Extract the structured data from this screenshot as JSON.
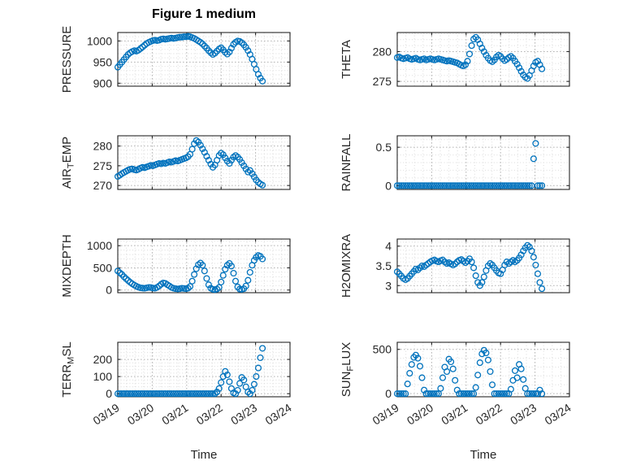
{
  "colors": {
    "marker": "#0072BD",
    "axis": "#262626",
    "text": "#262626",
    "grid_major": "#b3b3b3",
    "grid_minor": "#dbdbdb",
    "background": "#ffffff"
  },
  "chart_data": {
    "type": "scatter",
    "title": "Figure 1 medium",
    "xlabel": "Time",
    "marker": "o",
    "grid": "on",
    "minor_grid": "on",
    "xlim": [
      0,
      5
    ],
    "xticks": [
      0,
      1,
      2,
      3,
      4,
      5
    ],
    "x_tick_labels": [
      "03/19",
      "03/20",
      "03/21",
      "03/22",
      "03/23",
      "03/24"
    ],
    "x_units": "days since 03/19",
    "x": [
      0,
      0.06,
      0.12,
      0.18,
      0.24,
      0.3,
      0.36,
      0.42,
      0.48,
      0.54,
      0.6,
      0.66,
      0.72,
      0.78,
      0.84,
      0.9,
      0.96,
      1.02,
      1.08,
      1.14,
      1.2,
      1.26,
      1.32,
      1.38,
      1.44,
      1.5,
      1.56,
      1.62,
      1.68,
      1.74,
      1.8,
      1.86,
      1.92,
      1.98,
      2.04,
      2.1,
      2.16,
      2.22,
      2.28,
      2.34,
      2.4,
      2.46,
      2.52,
      2.58,
      2.64,
      2.7,
      2.76,
      2.82,
      2.88,
      2.94,
      3,
      3.06,
      3.12,
      3.18,
      3.24,
      3.3,
      3.36,
      3.42,
      3.48,
      3.54,
      3.6,
      3.66,
      3.72,
      3.78,
      3.84,
      3.9,
      3.96,
      4.02,
      4.08,
      4.14,
      4.2
    ],
    "charts": [
      {
        "id": "pressure",
        "ylabel": "PRESSURE",
        "ylabel_parts": [
          [
            "PRESSURE",
            false
          ]
        ],
        "yticks": [
          900,
          950,
          1000
        ],
        "ylim": [
          893,
          1020
        ],
        "values": [
          938,
          944,
          950,
          956,
          962,
          968,
          972,
          975,
          977,
          976,
          978,
          982,
          986,
          990,
          994,
          997,
          999,
          1001,
          1002,
          1001,
          1002,
          1004,
          1005,
          1004,
          1005,
          1006,
          1007,
          1006,
          1007,
          1008,
          1009,
          1009,
          1010,
          1010,
          1011,
          1010,
          1008,
          1006,
          1003,
          1000,
          997,
          993,
          988,
          983,
          977,
          972,
          968,
          971,
          976,
          981,
          984,
          979,
          973,
          969,
          974,
          983,
          992,
          997,
          1000,
          999,
          996,
          991,
          985,
          977,
          968,
          957,
          945,
          933,
          921,
          912,
          905
        ]
      },
      {
        "id": "theta",
        "ylabel": "THETA",
        "ylabel_parts": [
          [
            "THETA",
            false
          ]
        ],
        "yticks": [
          275,
          280
        ],
        "ylim": [
          274.2,
          283.2
        ],
        "values": [
          279,
          279.1,
          278.9,
          278.8,
          278.9,
          279,
          278.8,
          278.7,
          278.8,
          278.9,
          278.7,
          278.6,
          278.7,
          278.8,
          278.6,
          278.7,
          278.8,
          278.7,
          278.6,
          278.7,
          278.8,
          278.7,
          278.6,
          278.5,
          278.4,
          278.5,
          278.4,
          278.3,
          278.2,
          278.1,
          277.9,
          277.7,
          277.6,
          277.8,
          278.4,
          279.6,
          281,
          282.1,
          282.4,
          282,
          281.3,
          280.6,
          280,
          279.4,
          278.9,
          278.5,
          278.3,
          278.6,
          279.1,
          279.4,
          279.2,
          278.8,
          278.5,
          278.7,
          279,
          279.2,
          278.9,
          278.4,
          277.9,
          277.3,
          276.7,
          276.1,
          275.7,
          275.5,
          276,
          276.8,
          277.6,
          278.2,
          278.4,
          277.8,
          277.1
        ]
      },
      {
        "id": "air_temp",
        "ylabel": "AIR_TEMP",
        "ylabel_parts": [
          [
            "AIR",
            false
          ],
          [
            "T",
            true
          ],
          [
            "EMP",
            false
          ]
        ],
        "yticks": [
          270,
          275,
          280
        ],
        "ylim": [
          269,
          282.6
        ],
        "values": [
          272.3,
          272.6,
          273,
          273.3,
          273.6,
          273.9,
          274.1,
          274.2,
          274,
          273.9,
          274.1,
          274.4,
          274.6,
          274.5,
          274.7,
          274.9,
          275.1,
          275,
          275.2,
          275.4,
          275.6,
          275.5,
          275.7,
          275.6,
          275.8,
          276,
          275.9,
          276.1,
          276.3,
          276.2,
          276.4,
          276.6,
          276.8,
          277,
          277.3,
          277.9,
          279.2,
          280.6,
          281.4,
          281,
          280.2,
          279.3,
          278.4,
          277.4,
          276.4,
          275.4,
          274.6,
          275.2,
          276.4,
          277.6,
          278.2,
          277.8,
          277,
          276.2,
          275.6,
          276.4,
          277.2,
          277.6,
          277.2,
          276.6,
          275.8,
          275,
          274.2,
          273.4,
          273.8,
          273,
          272.2,
          271.4,
          270.8,
          270.4,
          270.1
        ]
      },
      {
        "id": "rainfall",
        "ylabel": "RAINFALL",
        "ylabel_parts": [
          [
            "RAINFALL",
            false
          ]
        ],
        "yticks": [
          0,
          0.5
        ],
        "ylim": [
          -0.05,
          0.65
        ],
        "values": [
          0,
          0,
          0,
          0,
          0,
          0,
          0,
          0,
          0,
          0,
          0,
          0,
          0,
          0,
          0,
          0,
          0,
          0,
          0,
          0,
          0,
          0,
          0,
          0,
          0,
          0,
          0,
          0,
          0,
          0,
          0,
          0,
          0,
          0,
          0,
          0,
          0,
          0,
          0,
          0,
          0,
          0,
          0,
          0,
          0,
          0,
          0,
          0,
          0,
          0,
          0,
          0,
          0,
          0,
          0,
          0,
          0,
          0,
          0,
          0,
          0,
          0,
          0,
          0,
          0,
          0,
          0.35,
          0.55,
          0,
          0,
          0
        ]
      },
      {
        "id": "mixdepth",
        "ylabel": "MIXDEPTH",
        "ylabel_parts": [
          [
            "MIXDEPTH",
            false
          ]
        ],
        "yticks": [
          0,
          500,
          1000
        ],
        "ylim": [
          -60,
          1150
        ],
        "values": [
          430,
          390,
          350,
          300,
          255,
          215,
          175,
          140,
          110,
          85,
          65,
          50,
          45,
          40,
          50,
          60,
          55,
          45,
          40,
          60,
          90,
          130,
          160,
          150,
          120,
          90,
          60,
          40,
          30,
          25,
          30,
          40,
          35,
          30,
          40,
          80,
          200,
          350,
          480,
          570,
          610,
          560,
          430,
          260,
          120,
          40,
          15,
          10,
          20,
          60,
          180,
          330,
          470,
          560,
          600,
          540,
          380,
          200,
          70,
          20,
          15,
          30,
          90,
          220,
          400,
          560,
          670,
          740,
          780,
          760,
          700
        ]
      },
      {
        "id": "h2omixra",
        "ylabel": "H2OMIXRA",
        "ylabel_parts": [
          [
            "H2OMIXRA",
            false
          ]
        ],
        "yticks": [
          3,
          3.5,
          4
        ],
        "ylim": [
          2.82,
          4.18
        ],
        "values": [
          3.35,
          3.3,
          3.24,
          3.18,
          3.15,
          3.18,
          3.24,
          3.3,
          3.36,
          3.42,
          3.4,
          3.45,
          3.5,
          3.48,
          3.52,
          3.56,
          3.6,
          3.63,
          3.65,
          3.62,
          3.6,
          3.63,
          3.65,
          3.6,
          3.56,
          3.58,
          3.55,
          3.52,
          3.55,
          3.6,
          3.64,
          3.66,
          3.62,
          3.58,
          3.62,
          3.68,
          3.6,
          3.45,
          3.25,
          3.08,
          3,
          3.08,
          3.22,
          3.38,
          3.5,
          3.56,
          3.52,
          3.45,
          3.38,
          3.32,
          3.3,
          3.4,
          3.52,
          3.6,
          3.56,
          3.6,
          3.64,
          3.6,
          3.64,
          3.7,
          3.78,
          3.88,
          3.96,
          4.02,
          3.98,
          3.88,
          3.72,
          3.52,
          3.3,
          3.08,
          2.92
        ]
      },
      {
        "id": "terr_msl",
        "ylabel": "TERR_MSL",
        "ylabel_parts": [
          [
            "TERR",
            false
          ],
          [
            "M",
            true
          ],
          [
            "SL",
            false
          ]
        ],
        "yticks": [
          0,
          100,
          200
        ],
        "ylim": [
          -18,
          300
        ],
        "values": [
          0,
          0,
          0,
          0,
          0,
          0,
          0,
          0,
          0,
          0,
          0,
          0,
          0,
          0,
          0,
          0,
          0,
          0,
          0,
          0,
          0,
          0,
          0,
          0,
          0,
          0,
          0,
          0,
          0,
          0,
          0,
          0,
          0,
          0,
          0,
          0,
          0,
          0,
          0,
          0,
          0,
          0,
          0,
          0,
          0,
          0,
          0,
          0,
          10,
          30,
          65,
          100,
          130,
          110,
          70,
          30,
          5,
          0,
          20,
          60,
          95,
          80,
          40,
          10,
          0,
          20,
          55,
          100,
          150,
          210,
          265
        ]
      },
      {
        "id": "sun_flux",
        "ylabel": "SUN_FLUX",
        "ylabel_parts": [
          [
            "SUN",
            false
          ],
          [
            "F",
            true
          ],
          [
            "LUX",
            false
          ]
        ],
        "yticks": [
          0,
          500
        ],
        "ylim": [
          -35,
          580
        ],
        "values": [
          0,
          0,
          0,
          0,
          0,
          110,
          230,
          330,
          410,
          435,
          400,
          310,
          180,
          40,
          0,
          0,
          0,
          0,
          0,
          0,
          0,
          60,
          180,
          300,
          250,
          390,
          360,
          280,
          150,
          40,
          0,
          0,
          0,
          0,
          0,
          0,
          0,
          0,
          70,
          210,
          350,
          450,
          490,
          460,
          380,
          250,
          100,
          0,
          0,
          0,
          0,
          0,
          0,
          0,
          0,
          50,
          150,
          260,
          180,
          330,
          280,
          160,
          60,
          0,
          0,
          0,
          0,
          0,
          0,
          40,
          0
        ]
      }
    ]
  }
}
